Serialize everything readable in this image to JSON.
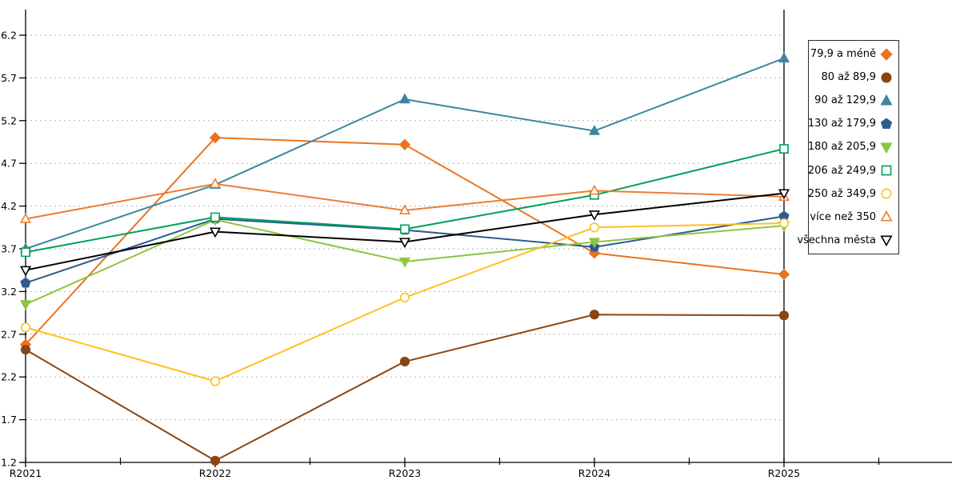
{
  "chart_data": {
    "type": "line",
    "title": "",
    "xlabel": "",
    "ylabel": "",
    "x_categories": [
      "R2021",
      "R2022",
      "R2023",
      "R2024",
      "R2025"
    ],
    "y_ticks": [
      1.2,
      1.7,
      2.2,
      2.7,
      3.2,
      3.7,
      4.2,
      4.7,
      5.2,
      5.7,
      6.2
    ],
    "y_tick_labels": [
      "1.2",
      "1.7",
      "2.2",
      "2.7",
      "3.2",
      "3.7",
      "4.2",
      "4.7",
      "5.2",
      "5.7",
      "6.2"
    ],
    "ylim": [
      1.2,
      6.5
    ],
    "grid": "horizontal-dashed",
    "grid_color": "#b3b3b3",
    "axis_color": "#000000",
    "legend_position": "right-box",
    "series": [
      {
        "name": "79,9 a méně",
        "color": "#e8741e",
        "marker": "diamond",
        "filled": true,
        "values": [
          2.58,
          5.0,
          4.92,
          3.65,
          3.4
        ]
      },
      {
        "name": "80 až 89,9",
        "color": "#8b4513",
        "marker": "circle",
        "filled": true,
        "values": [
          2.52,
          1.22,
          2.38,
          2.93,
          2.92
        ]
      },
      {
        "name": "90 až 129,9",
        "color": "#3c87a0",
        "marker": "triangle-up",
        "filled": true,
        "values": [
          3.7,
          4.45,
          5.45,
          5.08,
          5.93
        ]
      },
      {
        "name": "130 až 179,9",
        "color": "#2e5b8f",
        "marker": "pentagon",
        "filled": true,
        "values": [
          3.3,
          4.05,
          3.92,
          3.72,
          4.08
        ]
      },
      {
        "name": "180 až 205,9",
        "color": "#8dc63f",
        "marker": "triangle-down",
        "filled": true,
        "values": [
          3.05,
          4.04,
          3.55,
          3.78,
          3.97
        ]
      },
      {
        "name": "206 až 249,9",
        "color": "#00a05a",
        "marker": "square",
        "filled": false,
        "values": [
          3.66,
          4.07,
          3.93,
          4.33,
          4.87
        ]
      },
      {
        "name": "250 až 349,9",
        "color": "#ffc01e",
        "marker": "circle",
        "filled": false,
        "values": [
          2.78,
          2.15,
          3.13,
          3.95,
          4.0
        ]
      },
      {
        "name": "více než 350",
        "color": "#ed7d31",
        "marker": "triangle-up",
        "filled": false,
        "values": [
          4.05,
          4.46,
          4.15,
          4.38,
          4.31
        ]
      },
      {
        "name": "všechna města",
        "color": "#000000",
        "marker": "triangle-down",
        "filled": false,
        "values": [
          3.45,
          3.9,
          3.78,
          4.1,
          4.35
        ]
      }
    ]
  }
}
